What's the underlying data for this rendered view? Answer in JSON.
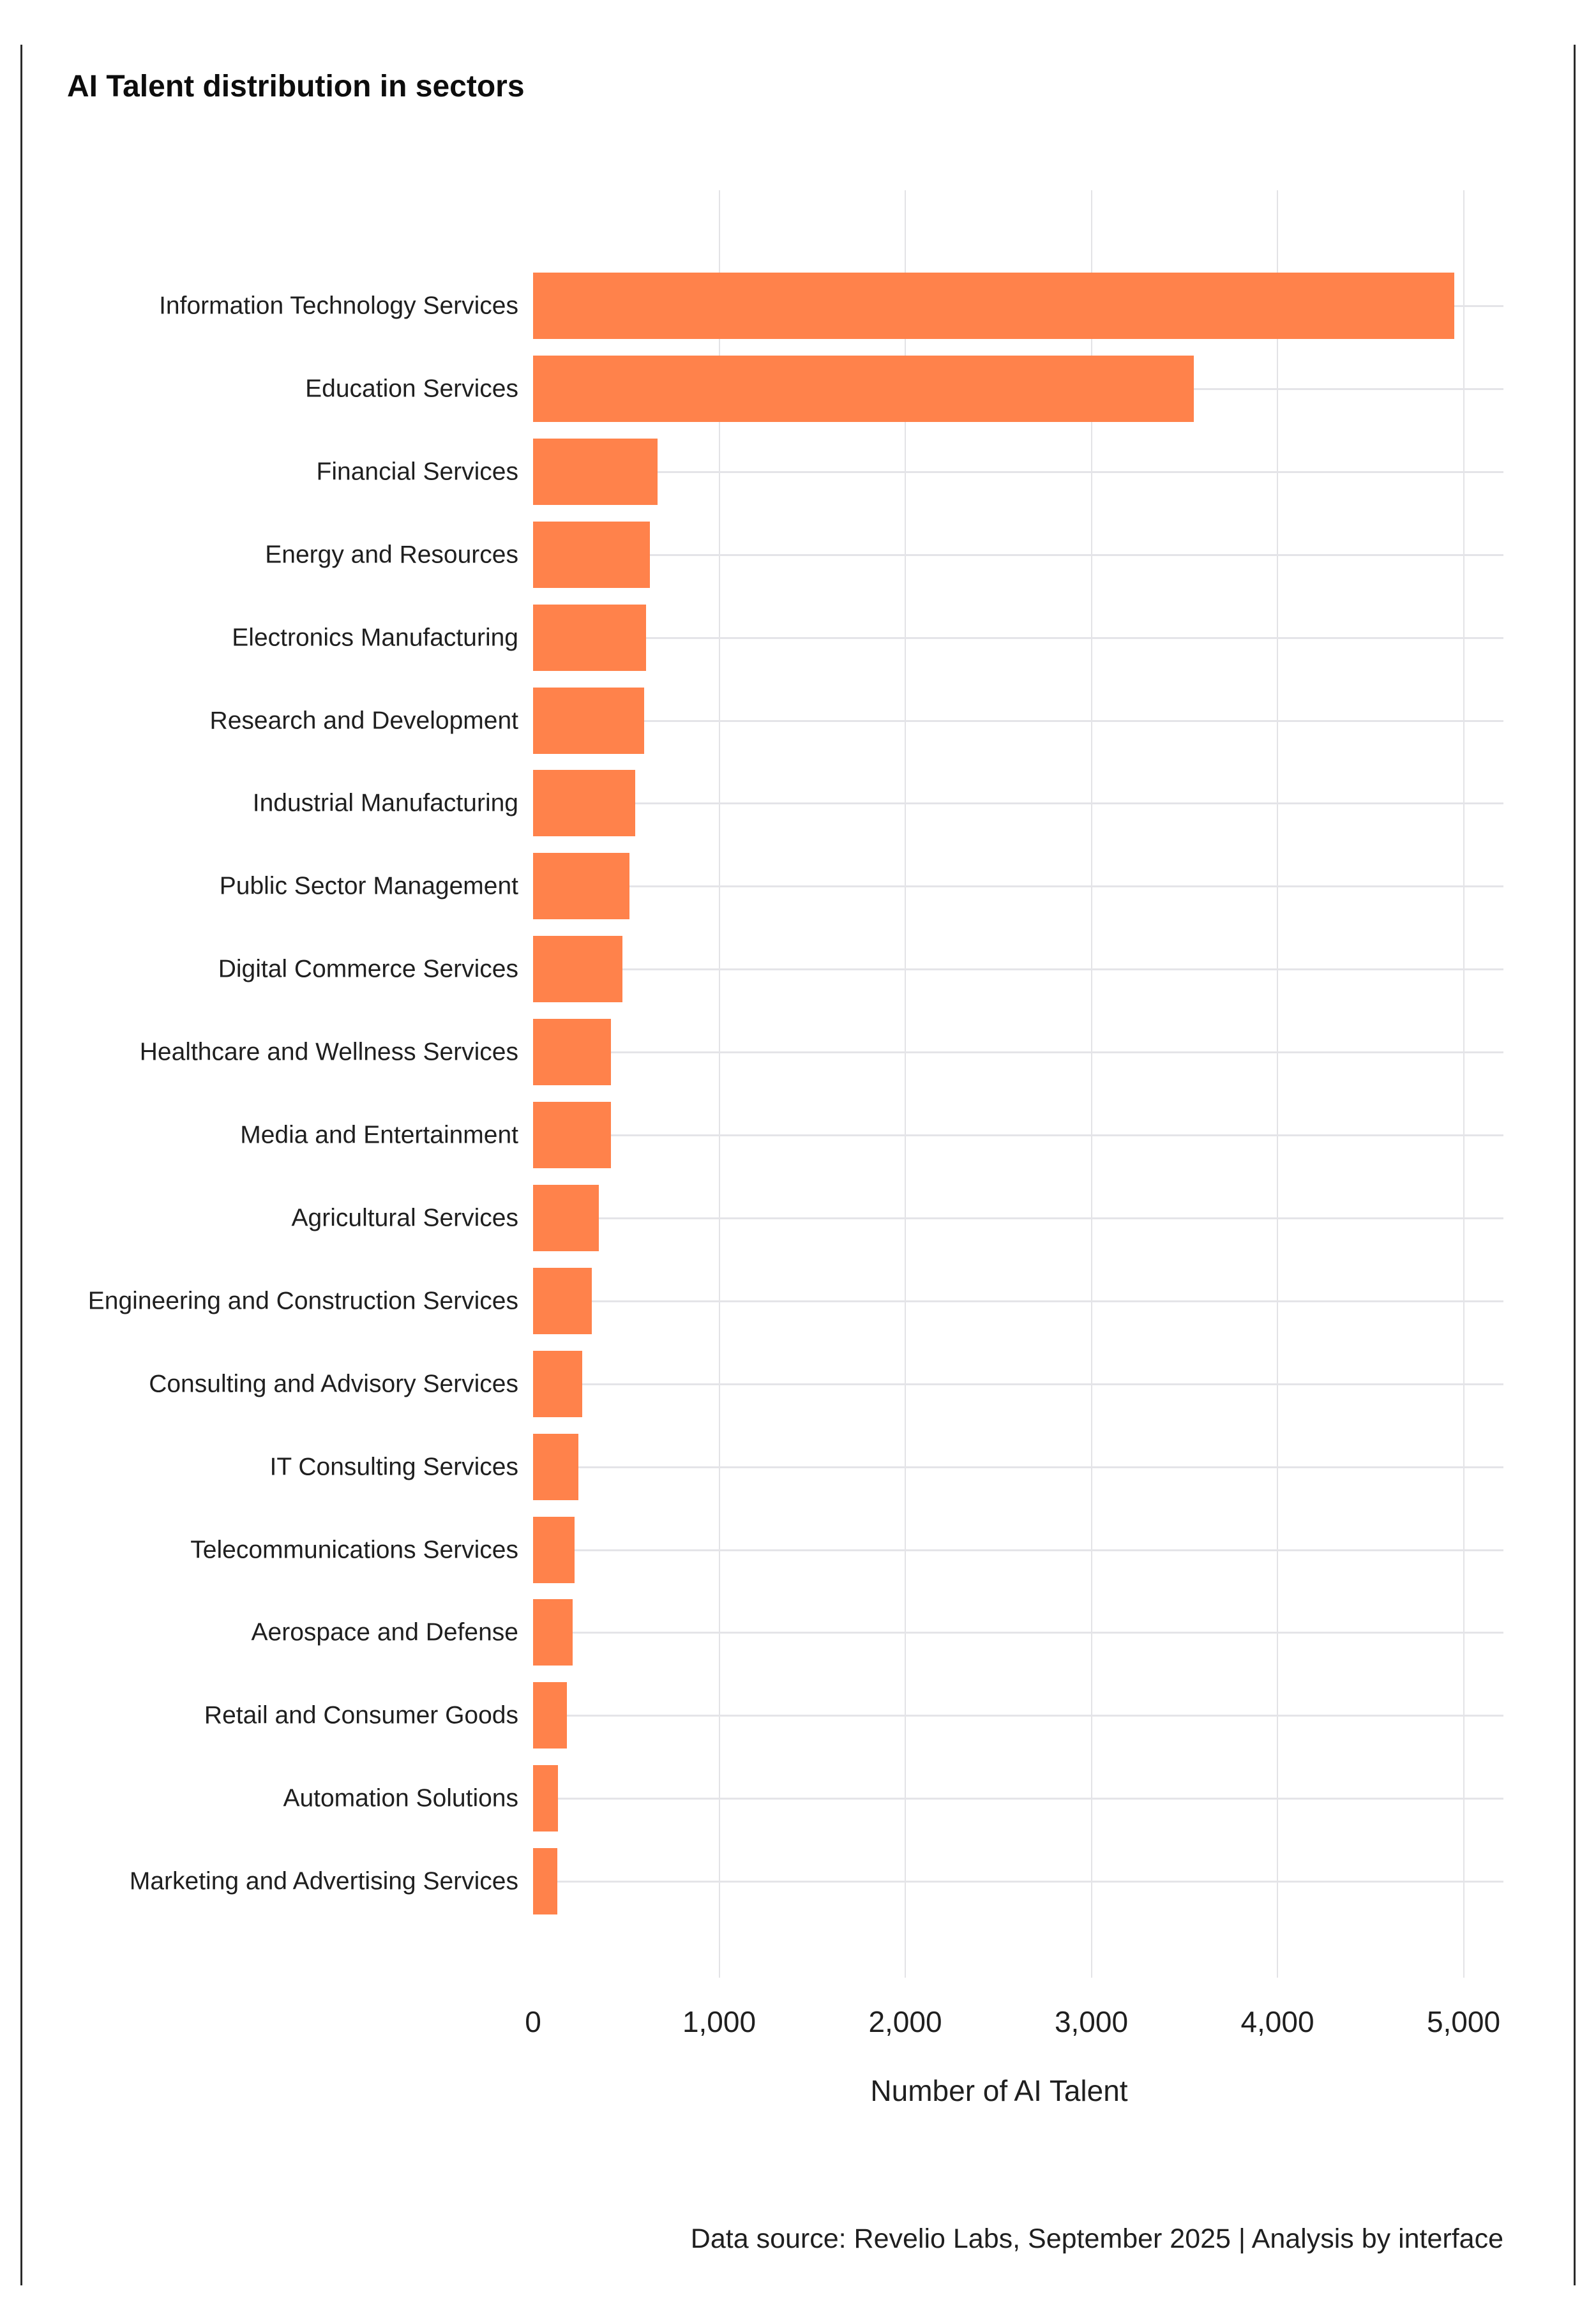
{
  "title": "AI Talent distribution in sectors",
  "footer": "Data source: Revelio Labs, September 2025 | Analysis by interface",
  "colors": {
    "bar": "#ff824b",
    "grid": "#e3e3e6",
    "text": "#1f1f1f"
  },
  "chart_data": {
    "type": "bar",
    "orientation": "horizontal",
    "title": "AI Talent distribution in sectors",
    "xlabel": "Number of AI Talent",
    "ylabel": "",
    "xlim": [
      0,
      5000
    ],
    "x_ticks": [
      "0",
      "1,000",
      "2,000",
      "3,000",
      "4,000",
      "5,000"
    ],
    "grid": true,
    "legend": null,
    "categories": [
      "Information Technology Services",
      "Education Services",
      "Financial Services",
      "Energy and Resources",
      "Electronics Manufacturing",
      "Research and Development",
      "Industrial Manufacturing",
      "Public Sector Management",
      "Digital Commerce Services",
      "Healthcare and Wellness Services",
      "Media and Entertainment",
      "Agricultural Services",
      "Engineering and Construction Services",
      "Consulting and Advisory Services",
      "IT Consulting Services",
      "Telecommunications Services",
      "Aerospace and Defense",
      "Retail and Consumer Goods",
      "Automation Solutions",
      "Marketing and Advertising Services"
    ],
    "values": [
      4950,
      3550,
      670,
      627,
      606,
      596,
      548,
      519,
      480,
      420,
      418,
      352,
      315,
      265,
      244,
      224,
      211,
      181,
      135,
      130
    ],
    "source": "Data source: Revelio Labs, September 2025 | Analysis by interface"
  }
}
